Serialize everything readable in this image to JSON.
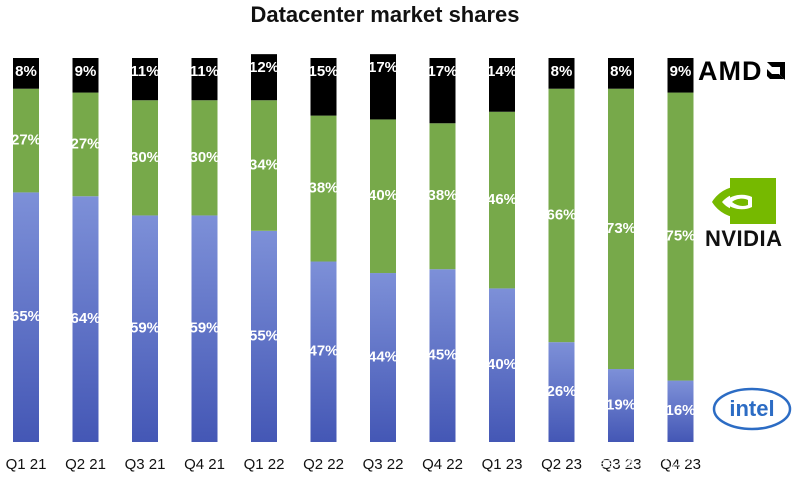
{
  "chart_data": {
    "type": "bar",
    "stacked": true,
    "title": "Datacenter market shares",
    "categories": [
      "Q1 21",
      "Q2 21",
      "Q3 21",
      "Q4 21",
      "Q1 22",
      "Q2 22",
      "Q3 22",
      "Q4 22",
      "Q1 23",
      "Q2 23",
      "Q3 23",
      "Q4 23"
    ],
    "series": [
      {
        "name": "Intel",
        "color": "#5b6fc6",
        "values": [
          65,
          64,
          59,
          59,
          55,
          47,
          44,
          45,
          40,
          26,
          19,
          16
        ]
      },
      {
        "name": "NVIDIA",
        "color": "#77a94a",
        "values": [
          27,
          27,
          30,
          30,
          34,
          38,
          40,
          38,
          46,
          66,
          73,
          75
        ]
      },
      {
        "name": "AMD",
        "color": "#000000",
        "values": [
          8,
          9,
          11,
          11,
          12,
          15,
          17,
          17,
          14,
          8,
          8,
          9
        ]
      }
    ],
    "ylim": [
      0,
      100
    ],
    "grid": false,
    "legend": "logos-right"
  },
  "logos": {
    "amd": "AMD",
    "nvidia": "NVIDIA",
    "intel": "intel"
  },
  "watermark": "雪球：杰彩",
  "icons": {
    "amd": "amd-logo",
    "nvidia": "nvidia-eye-icon",
    "intel": "intel-logo"
  }
}
